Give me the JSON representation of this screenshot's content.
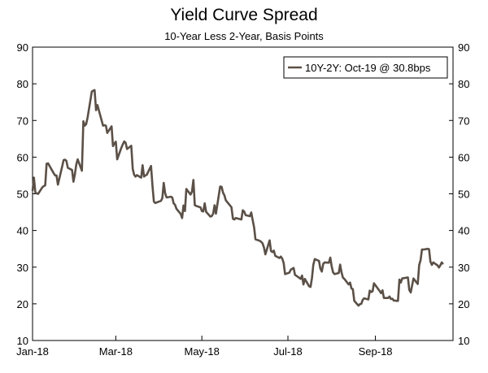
{
  "chart_data": {
    "type": "line",
    "title": "Yield Curve Spread",
    "subtitle": "10-Year Less 2-Year, Basis Points",
    "xlabel": "",
    "ylabel": "",
    "ylim": [
      10,
      90
    ],
    "yticks": [
      10,
      20,
      30,
      40,
      50,
      60,
      70,
      80,
      90
    ],
    "xlim": [
      "2018-01-01",
      "2018-10-26"
    ],
    "xticks": [
      {
        "date": "2018-01-01",
        "label": "Jan-18"
      },
      {
        "date": "2018-03-01",
        "label": "Mar-18"
      },
      {
        "date": "2018-05-01",
        "label": "May-18"
      },
      {
        "date": "2018-07-01",
        "label": "Jul-18"
      },
      {
        "date": "2018-09-01",
        "label": "Sep-18"
      }
    ],
    "dual_y_axis": true,
    "grid": false,
    "legend_position": "top-right",
    "series": [
      {
        "name": "10Y-2Y: Oct-19 @ 30.8bps",
        "color": "#5b5047",
        "x": [
          "2018-01-01",
          "2018-01-02",
          "2018-01-03",
          "2018-01-04",
          "2018-01-05",
          "2018-01-08",
          "2018-01-09",
          "2018-01-10",
          "2018-01-11",
          "2018-01-12",
          "2018-01-16",
          "2018-01-17",
          "2018-01-18",
          "2018-01-19",
          "2018-01-22",
          "2018-01-23",
          "2018-01-24",
          "2018-01-25",
          "2018-01-26",
          "2018-01-29",
          "2018-01-30",
          "2018-01-31",
          "2018-02-01",
          "2018-02-02",
          "2018-02-05",
          "2018-02-06",
          "2018-02-07",
          "2018-02-08",
          "2018-02-09",
          "2018-02-12",
          "2018-02-13",
          "2018-02-14",
          "2018-02-15",
          "2018-02-16",
          "2018-02-20",
          "2018-02-21",
          "2018-02-22",
          "2018-02-23",
          "2018-02-26",
          "2018-02-27",
          "2018-02-28",
          "2018-03-01",
          "2018-03-02",
          "2018-03-05",
          "2018-03-06",
          "2018-03-07",
          "2018-03-08",
          "2018-03-09",
          "2018-03-12",
          "2018-03-13",
          "2018-03-14",
          "2018-03-15",
          "2018-03-16",
          "2018-03-19",
          "2018-03-20",
          "2018-03-21",
          "2018-03-22",
          "2018-03-23",
          "2018-03-26",
          "2018-03-27",
          "2018-03-28",
          "2018-03-29",
          "2018-04-02",
          "2018-04-03",
          "2018-04-04",
          "2018-04-05",
          "2018-04-06",
          "2018-04-09",
          "2018-04-10",
          "2018-04-11",
          "2018-04-12",
          "2018-04-13",
          "2018-04-16",
          "2018-04-17",
          "2018-04-18",
          "2018-04-19",
          "2018-04-20",
          "2018-04-23",
          "2018-04-24",
          "2018-04-25",
          "2018-04-26",
          "2018-04-27",
          "2018-04-30",
          "2018-05-01",
          "2018-05-02",
          "2018-05-03",
          "2018-05-04",
          "2018-05-07",
          "2018-05-08",
          "2018-05-09",
          "2018-05-10",
          "2018-05-11",
          "2018-05-14",
          "2018-05-15",
          "2018-05-16",
          "2018-05-17",
          "2018-05-18",
          "2018-05-21",
          "2018-05-22",
          "2018-05-23",
          "2018-05-24",
          "2018-05-25",
          "2018-05-29",
          "2018-05-30",
          "2018-05-31",
          "2018-06-01",
          "2018-06-04",
          "2018-06-05",
          "2018-06-06",
          "2018-06-07",
          "2018-06-08",
          "2018-06-11",
          "2018-06-12",
          "2018-06-13",
          "2018-06-14",
          "2018-06-15",
          "2018-06-18",
          "2018-06-19",
          "2018-06-20",
          "2018-06-21",
          "2018-06-22",
          "2018-06-25",
          "2018-06-26",
          "2018-06-27",
          "2018-06-28",
          "2018-06-29",
          "2018-07-02",
          "2018-07-03",
          "2018-07-05",
          "2018-07-06",
          "2018-07-09",
          "2018-07-10",
          "2018-07-11",
          "2018-07-12",
          "2018-07-13",
          "2018-07-16",
          "2018-07-17",
          "2018-07-18",
          "2018-07-19",
          "2018-07-20",
          "2018-07-23",
          "2018-07-24",
          "2018-07-25",
          "2018-07-26",
          "2018-07-27",
          "2018-07-30",
          "2018-07-31",
          "2018-08-01",
          "2018-08-02",
          "2018-08-03",
          "2018-08-06",
          "2018-08-07",
          "2018-08-08",
          "2018-08-09",
          "2018-08-10",
          "2018-08-13",
          "2018-08-14",
          "2018-08-15",
          "2018-08-16",
          "2018-08-17",
          "2018-08-20",
          "2018-08-21",
          "2018-08-22",
          "2018-08-23",
          "2018-08-24",
          "2018-08-27",
          "2018-08-28",
          "2018-08-29",
          "2018-08-30",
          "2018-08-31",
          "2018-09-04",
          "2018-09-05",
          "2018-09-06",
          "2018-09-07",
          "2018-09-10",
          "2018-09-11",
          "2018-09-12",
          "2018-09-13",
          "2018-09-14",
          "2018-09-17",
          "2018-09-18",
          "2018-09-19",
          "2018-09-20",
          "2018-09-21",
          "2018-09-24",
          "2018-09-25",
          "2018-09-26",
          "2018-09-27",
          "2018-09-28",
          "2018-10-01",
          "2018-10-02",
          "2018-10-03",
          "2018-10-04",
          "2018-10-05",
          "2018-10-08",
          "2018-10-09",
          "2018-10-10",
          "2018-10-11",
          "2018-10-12",
          "2018-10-15",
          "2018-10-16",
          "2018-10-17",
          "2018-10-18",
          "2018-10-19"
        ],
        "values": [
          50.8,
          54.4,
          50.3,
          50.1,
          50.0,
          51.8,
          52.1,
          52.3,
          58.2,
          58.3,
          55.6,
          55.0,
          55.0,
          52.5,
          57.4,
          59.2,
          59.3,
          59.0,
          57.1,
          56.5,
          53.3,
          55.2,
          58.0,
          59.4,
          56.3,
          69.8,
          68.6,
          69.0,
          70.8,
          77.9,
          78.1,
          78.3,
          72.8,
          74.2,
          68.6,
          68.7,
          68.6,
          66.6,
          68.4,
          63.0,
          63.7,
          64.2,
          59.4,
          62.6,
          63.5,
          64.3,
          63.9,
          62.2,
          63.1,
          56.8,
          55.2,
          54.7,
          55.1,
          54.4,
          57.8,
          54.7,
          55.0,
          55.2,
          57.6,
          52.1,
          47.9,
          47.5,
          48.1,
          48.8,
          53.0,
          50.1,
          49.0,
          49.2,
          49.0,
          47.4,
          47.0,
          45.9,
          44.5,
          43.4,
          46.8,
          45.3,
          51.3,
          49.8,
          50.6,
          53.8,
          46.9,
          46.7,
          46.3,
          45.3,
          45.2,
          47.4,
          45.1,
          43.8,
          43.9,
          44.6,
          46.9,
          44.6,
          52.0,
          51.9,
          50.3,
          49.6,
          48.2,
          46.8,
          46.3,
          43.2,
          43.0,
          43.4,
          43.0,
          45.5,
          45.2,
          44.2,
          43.9,
          44.9,
          42.9,
          40.9,
          37.6,
          37.2,
          36.9,
          36.5,
          35.4,
          33.5,
          37.3,
          34.4,
          34.1,
          34.5,
          33.1,
          32.5,
          32.9,
          32.3,
          31.1,
          28.1,
          28.5,
          29.3,
          29.8,
          27.9,
          27.1,
          26.8,
          27.7,
          25.3,
          26.8,
          24.8,
          24.6,
          26.9,
          30.6,
          32.2,
          31.7,
          29.6,
          28.8,
          30.9,
          31.3,
          31.2,
          32.6,
          30.2,
          28.6,
          28.1,
          28.4,
          30.7,
          28.6,
          27.1,
          26.8,
          25.3,
          25.8,
          24.2,
          24.0,
          20.8,
          19.5,
          19.9,
          20.0,
          21.1,
          21.5,
          21.2,
          23.6,
          23.2,
          23.4,
          25.6,
          23.5,
          22.9,
          23.7,
          21.6,
          21.6,
          22.0,
          21.3,
          21.4,
          20.9,
          20.8,
          26.6,
          25.8,
          26.9,
          27.0,
          27.2,
          23.8,
          23.1,
          25.0,
          26.9,
          25.4,
          30.6,
          31.9,
          34.8,
          34.8,
          35.0,
          34.9,
          31.5,
          30.6,
          31.3,
          30.5,
          29.9,
          30.5,
          31.3,
          30.8
        ]
      }
    ]
  }
}
